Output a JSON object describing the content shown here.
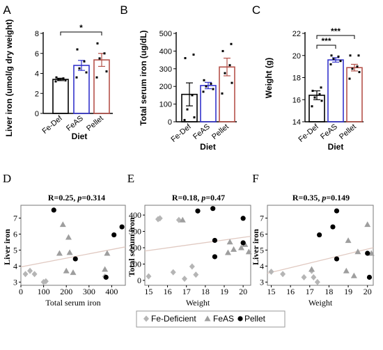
{
  "colors": {
    "fe_def": "#000000",
    "feas": "#3333cc",
    "pellet": "#b5524a",
    "deficient_marker": "#b5b5b5",
    "feas_marker": "#9e9e9e",
    "pellet_marker": "#000000",
    "trend": "#e0c9c1"
  },
  "legend": {
    "fe_deficient": "Fe-Deficient",
    "feas": "FeAS",
    "pellet": "Pellet"
  },
  "chart_data": [
    {
      "panel": "A",
      "type": "bar",
      "categories": [
        "Fe-Def",
        "FeAS",
        "Pellet"
      ],
      "values": [
        3.4,
        4.8,
        5.35
      ],
      "errors": [
        0.12,
        0.5,
        0.65
      ],
      "points": [
        [
          3.2,
          3.3,
          3.4,
          3.5,
          3.6
        ],
        [
          3.6,
          4.1,
          4.5,
          5.2,
          6.4
        ],
        [
          3.6,
          4.2,
          5.5,
          6.0,
          7.0
        ]
      ],
      "ylabel": "Liver iron (umol/g dry weight)",
      "xlabel": "Diet",
      "ylim": [
        0,
        8
      ],
      "yticks": [
        0,
        2,
        4,
        6,
        8
      ],
      "significance": [
        {
          "from": 0,
          "to": 2,
          "label": "*"
        }
      ]
    },
    {
      "panel": "B",
      "type": "bar",
      "categories": [
        "Fe-Def",
        "FeAS",
        "Pellet"
      ],
      "values": [
        155,
        205,
        310
      ],
      "errors": [
        65,
        18,
        50
      ],
      "points": [
        [
          10,
          25,
          70,
          150,
          360,
          380
        ],
        [
          170,
          185,
          200,
          215,
          235
        ],
        [
          160,
          220,
          275,
          320,
          400,
          440
        ]
      ],
      "ylabel": "Total serum iron (ug/dL)",
      "xlabel": "Diet",
      "ylim": [
        0,
        500
      ],
      "yticks": [
        0,
        100,
        200,
        300,
        400,
        500
      ]
    },
    {
      "panel": "C",
      "type": "bar",
      "categories": [
        "Fe-Def",
        "FeAS",
        "Pellet"
      ],
      "values": [
        16.4,
        19.6,
        18.9
      ],
      "errors": [
        0.4,
        0.2,
        0.3
      ],
      "points": [
        [
          15.4,
          15.9,
          16.2,
          16.5,
          16.8,
          17.1
        ],
        [
          19.2,
          19.5,
          19.7,
          19.9,
          20.0
        ],
        [
          17.9,
          18.5,
          18.8,
          19.0,
          20.0,
          20.0
        ]
      ],
      "ylabel": "Weight (g)",
      "xlabel": "Diet",
      "ylim": [
        14,
        22
      ],
      "yticks": [
        14,
        16,
        18,
        20,
        22
      ],
      "significance": [
        {
          "from": 0,
          "to": 1,
          "label": "***"
        },
        {
          "from": 0,
          "to": 2,
          "label": "***"
        }
      ]
    },
    {
      "panel": "D",
      "type": "scatter",
      "stat_r": "R=0.25, ",
      "stat_p_label": "p",
      "stat_p_value": "=0.314",
      "xlabel": "Total serum iron",
      "ylabel": "Liver iron",
      "xlim": [
        0,
        460
      ],
      "ylim": [
        2.8,
        7.8
      ],
      "xticks": [
        0,
        100,
        200,
        300,
        400
      ],
      "yticks": [
        3,
        4,
        5,
        6,
        7
      ],
      "trend": [
        [
          0,
          3.95
        ],
        [
          460,
          5.2
        ]
      ],
      "series": [
        {
          "name": "Fe-Deficient",
          "marker": "diamond",
          "points": [
            [
              20,
              3.5
            ],
            [
              40,
              3.7
            ],
            [
              60,
              3.5
            ],
            [
              100,
              3.0
            ],
            [
              110,
              3.05
            ],
            [
              370,
              3.35
            ]
          ]
        },
        {
          "name": "FeAS",
          "marker": "triangle",
          "points": [
            [
              170,
              4.8
            ],
            [
              185,
              6.6
            ],
            [
              200,
              3.7
            ],
            [
              210,
              5.8
            ],
            [
              215,
              4.85
            ],
            [
              230,
              3.6
            ],
            [
              370,
              3.8
            ],
            [
              380,
              4.8
            ]
          ]
        },
        {
          "name": "Pellet",
          "marker": "circle",
          "points": [
            [
              145,
              7.5
            ],
            [
              240,
              4.45
            ],
            [
              375,
              3.3
            ],
            [
              410,
              5.95
            ],
            [
              445,
              6.45
            ]
          ]
        }
      ]
    },
    {
      "panel": "E",
      "type": "scatter",
      "stat_r": "R=0.18, ",
      "stat_p_label": "p",
      "stat_p_value": "=0.47",
      "xlabel": "Weight",
      "ylabel": "Total serum iron",
      "xlim": [
        14.8,
        20.4
      ],
      "ylim": [
        -30,
        460
      ],
      "xticks": [
        15,
        16,
        17,
        18,
        19,
        20
      ],
      "yticks": [
        0,
        100,
        200,
        300,
        400
      ],
      "trend": [
        [
          14.8,
          180
        ],
        [
          20.4,
          270
        ]
      ],
      "series": [
        {
          "name": "Fe-Deficient",
          "marker": "diamond",
          "points": [
            [
              15.0,
              25
            ],
            [
              15.5,
              375
            ],
            [
              15.6,
              380
            ],
            [
              16.3,
              50
            ],
            [
              16.6,
              370
            ],
            [
              16.9,
              10
            ],
            [
              17.3,
              85
            ],
            [
              17.5,
              35
            ]
          ]
        },
        {
          "name": "FeAS",
          "marker": "triangle",
          "points": [
            [
              16.8,
              370
            ],
            [
              19.2,
              170
            ],
            [
              19.3,
              235
            ],
            [
              19.5,
              190
            ],
            [
              19.9,
              200
            ],
            [
              20.1,
              220
            ],
            [
              20.3,
              175
            ]
          ]
        },
        {
          "name": "Pellet",
          "marker": "circle",
          "points": [
            [
              17.6,
              425
            ],
            [
              18.4,
              440
            ],
            [
              18.5,
              245
            ],
            [
              18.5,
              145
            ],
            [
              20.0,
              230
            ],
            [
              20.0,
              380
            ]
          ]
        }
      ]
    },
    {
      "panel": "F",
      "type": "scatter",
      "stat_r": "R=0.35, ",
      "stat_p_label": "p",
      "stat_p_value": "=0.149",
      "xlabel": "Weight",
      "ylabel": "Liver iron",
      "xlim": [
        14.8,
        20.3
      ],
      "ylim": [
        2.8,
        7.8
      ],
      "xticks": [
        15,
        16,
        17,
        18,
        19,
        20
      ],
      "yticks": [
        3,
        4,
        5,
        6,
        7
      ],
      "trend": [
        [
          14.8,
          3.55
        ],
        [
          20.3,
          5.15
        ]
      ],
      "series": [
        {
          "name": "Fe-Deficient",
          "marker": "diamond",
          "points": [
            [
              15.0,
              3.65
            ],
            [
              15.6,
              3.5
            ],
            [
              16.7,
              3.3
            ],
            [
              17.1,
              3.7
            ],
            [
              17.2,
              3.3
            ],
            [
              17.4,
              3.0
            ]
          ]
        },
        {
          "name": "FeAS",
          "marker": "triangle",
          "points": [
            [
              17.1,
              3.8
            ],
            [
              18.9,
              3.7
            ],
            [
              19.0,
              5.6
            ],
            [
              19.3,
              3.4
            ],
            [
              19.5,
              4.9
            ],
            [
              20.0,
              6.6
            ],
            [
              20.2,
              4.8
            ]
          ]
        },
        {
          "name": "Pellet",
          "marker": "circle",
          "points": [
            [
              17.5,
              5.95
            ],
            [
              18.2,
              6.45
            ],
            [
              18.4,
              7.45
            ],
            [
              18.4,
              4.45
            ],
            [
              20.0,
              4.8
            ],
            [
              20.1,
              3.3
            ]
          ]
        }
      ]
    }
  ]
}
